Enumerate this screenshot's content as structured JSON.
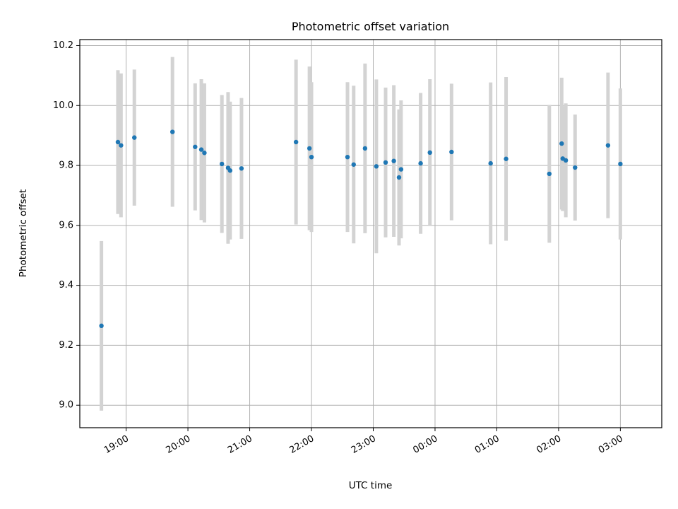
{
  "chart_data": {
    "type": "scatter",
    "title": "Photometric offset variation",
    "xlabel": "UTC time",
    "ylabel": "Photometric offset",
    "x_unit": "hours",
    "xlim": [
      18.25,
      27.67
    ],
    "ylim": [
      8.925,
      10.22
    ],
    "xticks": [
      {
        "value": 19,
        "label": "19:00"
      },
      {
        "value": 20,
        "label": "20:00"
      },
      {
        "value": 21,
        "label": "21:00"
      },
      {
        "value": 22,
        "label": "22:00"
      },
      {
        "value": 23,
        "label": "23:00"
      },
      {
        "value": 24,
        "label": "00:00"
      },
      {
        "value": 25,
        "label": "01:00"
      },
      {
        "value": 26,
        "label": "02:00"
      },
      {
        "value": 27,
        "label": "03:00"
      }
    ],
    "yticks": [
      {
        "value": 9.0,
        "label": "9.0"
      },
      {
        "value": 9.2,
        "label": "9.2"
      },
      {
        "value": 9.4,
        "label": "9.4"
      },
      {
        "value": 9.6,
        "label": "9.6"
      },
      {
        "value": 9.8,
        "label": "9.8"
      },
      {
        "value": 10.0,
        "label": "10.0"
      },
      {
        "value": 10.2,
        "label": "10.2"
      }
    ],
    "grid": true,
    "point_color": "#1f77b4",
    "errorbar_color": "#d3d3d3",
    "points": [
      {
        "x": 18.6,
        "y": 9.265,
        "err": 0.283
      },
      {
        "x": 18.867,
        "y": 9.878,
        "err": 0.24
      },
      {
        "x": 18.917,
        "y": 9.867,
        "err": 0.24
      },
      {
        "x": 19.133,
        "y": 9.893,
        "err": 0.227
      },
      {
        "x": 19.75,
        "y": 9.912,
        "err": 0.25
      },
      {
        "x": 20.117,
        "y": 9.862,
        "err": 0.212
      },
      {
        "x": 20.217,
        "y": 9.853,
        "err": 0.235
      },
      {
        "x": 20.267,
        "y": 9.842,
        "err": 0.232
      },
      {
        "x": 20.55,
        "y": 9.805,
        "err": 0.23
      },
      {
        "x": 20.65,
        "y": 9.792,
        "err": 0.253
      },
      {
        "x": 20.683,
        "y": 9.783,
        "err": 0.23
      },
      {
        "x": 20.867,
        "y": 9.79,
        "err": 0.235
      },
      {
        "x": 21.75,
        "y": 9.878,
        "err": 0.275
      },
      {
        "x": 21.967,
        "y": 9.857,
        "err": 0.273
      },
      {
        "x": 22.0,
        "y": 9.828,
        "err": 0.25
      },
      {
        "x": 22.583,
        "y": 9.828,
        "err": 0.25
      },
      {
        "x": 22.683,
        "y": 9.803,
        "err": 0.263
      },
      {
        "x": 22.867,
        "y": 9.857,
        "err": 0.283
      },
      {
        "x": 23.05,
        "y": 9.797,
        "err": 0.29
      },
      {
        "x": 23.2,
        "y": 9.81,
        "err": 0.25
      },
      {
        "x": 23.333,
        "y": 9.815,
        "err": 0.253
      },
      {
        "x": 23.417,
        "y": 9.76,
        "err": 0.227
      },
      {
        "x": 23.45,
        "y": 9.787,
        "err": 0.23
      },
      {
        "x": 23.767,
        "y": 9.807,
        "err": 0.235
      },
      {
        "x": 23.917,
        "y": 9.843,
        "err": 0.245
      },
      {
        "x": 24.267,
        "y": 9.845,
        "err": 0.228
      },
      {
        "x": 24.9,
        "y": 9.807,
        "err": 0.27
      },
      {
        "x": 25.15,
        "y": 9.822,
        "err": 0.273
      },
      {
        "x": 25.85,
        "y": 9.772,
        "err": 0.23
      },
      {
        "x": 26.05,
        "y": 9.873,
        "err": 0.22
      },
      {
        "x": 26.067,
        "y": 9.823,
        "err": 0.175
      },
      {
        "x": 26.117,
        "y": 9.817,
        "err": 0.19
      },
      {
        "x": 26.267,
        "y": 9.793,
        "err": 0.177
      },
      {
        "x": 26.8,
        "y": 9.867,
        "err": 0.243
      },
      {
        "x": 27.0,
        "y": 9.805,
        "err": 0.252
      }
    ]
  }
}
